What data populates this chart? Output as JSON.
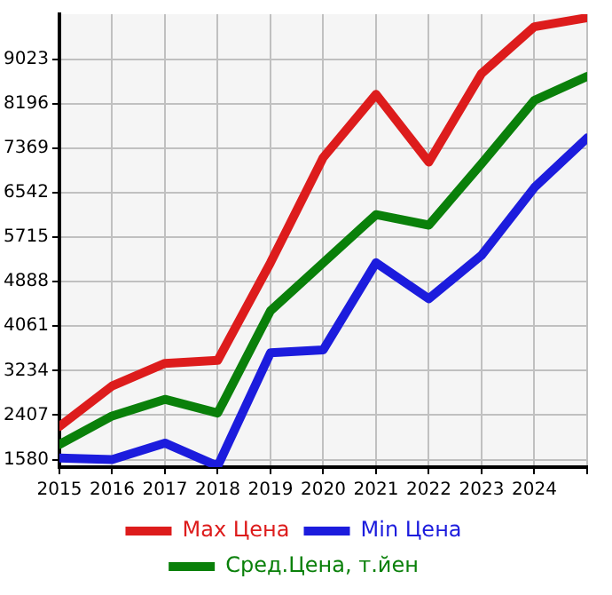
{
  "chart_data": {
    "type": "line",
    "x": [
      2015,
      2016,
      2017,
      2018,
      2019,
      2020,
      2021,
      2022,
      2023,
      2024,
      2025
    ],
    "series": [
      {
        "name": "Max Цена",
        "color": "#dd1c1c",
        "values": [
          2195,
          2949,
          3368,
          3424,
          5240,
          7196,
          8370,
          7112,
          8760,
          9627,
          9794
        ]
      },
      {
        "name": "Min Цена",
        "color": "#1c1cdd",
        "values": [
          1608,
          1580,
          1887,
          1460,
          3564,
          3620,
          5240,
          4570,
          5380,
          6637,
          7559
        ]
      },
      {
        "name": "Сред.Цена, т.йен",
        "color": "#0a800a",
        "values": [
          1860,
          2390,
          2700,
          2446,
          4346,
          5240,
          6134,
          5939,
          7084,
          8258,
          8705
        ]
      }
    ],
    "xlim": [
      2015,
      2025
    ],
    "xticks": [
      2015,
      2016,
      2017,
      2018,
      2019,
      2020,
      2021,
      2022,
      2023,
      2024,
      {
        "value": 2025,
        "label": null
      }
    ],
    "ylim": [
      1440,
      9860
    ],
    "yticks": [
      1580,
      2407,
      3234,
      4061,
      4888,
      5715,
      6542,
      7369,
      8196,
      9023
    ],
    "grid": true,
    "legend": "bottom",
    "marker": "none",
    "line_style": "solid"
  }
}
